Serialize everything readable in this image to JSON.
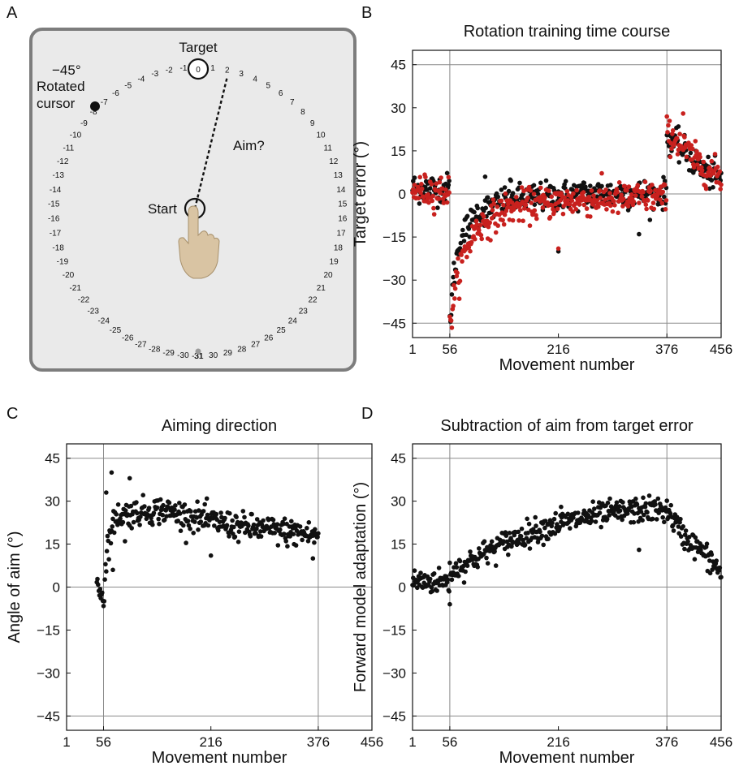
{
  "panel_letters": {
    "a": "A",
    "b": "B",
    "c": "C",
    "d": "D"
  },
  "diagram": {
    "target_label": "Target",
    "target_value": "0",
    "rotation_label": "−45°",
    "rotated_cursor_label": [
      "Rotated",
      "cursor"
    ],
    "aim_label": "Aim?",
    "start_label": "Start",
    "dial_right": [
      "1",
      "2",
      "3",
      "4",
      "5",
      "6",
      "7",
      "8",
      "9",
      "10",
      "11",
      "12",
      "13",
      "14",
      "15",
      "16",
      "17",
      "18",
      "19",
      "20",
      "21",
      "22",
      "23",
      "24",
      "25",
      "26",
      "27",
      "28",
      "29",
      "30",
      "31"
    ],
    "dial_left": [
      "-1",
      "-2",
      "-3",
      "-4",
      "-5",
      "-6",
      "-7",
      "-8",
      "-9",
      "-10",
      "-11",
      "-12",
      "-13",
      "-14",
      "-15",
      "-16",
      "-17",
      "-18",
      "-19",
      "-20",
      "-21",
      "-22",
      "-23",
      "-24",
      "-25",
      "-26",
      "-27",
      "-28",
      "-29",
      "-30",
      "-31"
    ],
    "colors": {
      "panel_bg": "#eaeaea",
      "panel_border": "#7d7d7d",
      "hand": "#d9c4a3",
      "bottom_dot": "#9a9a9a"
    }
  },
  "chart_data": [
    {
      "id": "B",
      "type": "scatter",
      "title": "Rotation training time course",
      "xlabel": "Movement number",
      "ylabel": "Target error (°)",
      "xlim": [
        1,
        456
      ],
      "ylim": [
        -50,
        50
      ],
      "xticks": [
        1,
        56,
        216,
        376,
        456
      ],
      "yticks": [
        45,
        30,
        15,
        0,
        -15,
        -30,
        -45
      ],
      "hlines": [
        45,
        0,
        -45
      ],
      "vlines": [
        56,
        376
      ],
      "series": [
        {
          "color": "#111111",
          "trend": [
            [
              1,
              2
            ],
            [
              55,
              2
            ],
            [
              56,
              -44
            ],
            [
              62,
              -28
            ],
            [
              72,
              -15
            ],
            [
              95,
              -7
            ],
            [
              140,
              -2
            ],
            [
              200,
              -1
            ],
            [
              250,
              0
            ],
            [
              300,
              0
            ],
            [
              350,
              0
            ],
            [
              375,
              0
            ],
            [
              376,
              20
            ],
            [
              390,
              17
            ],
            [
              405,
              14
            ],
            [
              420,
              10
            ],
            [
              440,
              7
            ],
            [
              456,
              5
            ]
          ],
          "noise": 2.6,
          "outliers": [
            [
              108,
              6
            ],
            [
              145,
              5
            ],
            [
              216,
              -20
            ],
            [
              335,
              -14
            ]
          ]
        },
        {
          "color": "#c8211e",
          "trend": [
            [
              1,
              1
            ],
            [
              55,
              1
            ],
            [
              56,
              -47
            ],
            [
              62,
              -35
            ],
            [
              75,
              -22
            ],
            [
              95,
              -12
            ],
            [
              140,
              -5
            ],
            [
              200,
              -3
            ],
            [
              250,
              -2
            ],
            [
              300,
              -2
            ],
            [
              350,
              -1
            ],
            [
              375,
              -1
            ],
            [
              376,
              21
            ],
            [
              390,
              19
            ],
            [
              405,
              15
            ],
            [
              420,
              11
            ],
            [
              440,
              8
            ],
            [
              456,
              6
            ]
          ],
          "noise": 2.8,
          "outliers": [
            [
              216,
              -19
            ],
            [
              400,
              28
            ]
          ]
        }
      ]
    },
    {
      "id": "C",
      "type": "scatter",
      "title": "Aiming direction",
      "xlabel": "Movement number",
      "ylabel": "Angle of aim (°)",
      "xlim": [
        1,
        456
      ],
      "ylim": [
        -50,
        50
      ],
      "xticks": [
        1,
        56,
        216,
        376,
        456
      ],
      "yticks": [
        45,
        30,
        15,
        0,
        -15,
        -30,
        -45
      ],
      "hlines": [
        45,
        0,
        -45
      ],
      "vlines": [
        56,
        376
      ],
      "series": [
        {
          "color": "#111111",
          "range": [
            46,
            376
          ],
          "trend": [
            [
              46,
              2
            ],
            [
              56,
              -4
            ],
            [
              62,
              15
            ],
            [
              75,
              25
            ],
            [
              100,
              26
            ],
            [
              140,
              27
            ],
            [
              180,
              25
            ],
            [
              216,
              23
            ],
            [
              260,
              21
            ],
            [
              300,
              20
            ],
            [
              340,
              19
            ],
            [
              376,
              18
            ]
          ],
          "noise": 2.4,
          "outliers": [
            [
              68,
              40
            ],
            [
              60,
              33
            ],
            [
              95,
              38
            ],
            [
              88,
              16
            ],
            [
              70,
              6
            ],
            [
              216,
              11
            ],
            [
              368,
              10
            ]
          ]
        }
      ]
    },
    {
      "id": "D",
      "type": "scatter",
      "title": "Subtraction of aim from target error",
      "xlabel": "Movement number",
      "ylabel": "Forward model adaptation (°)",
      "xlim": [
        1,
        456
      ],
      "ylim": [
        -50,
        50
      ],
      "xticks": [
        1,
        56,
        216,
        376,
        456
      ],
      "yticks": [
        45,
        30,
        15,
        0,
        -15,
        -30,
        -45
      ],
      "hlines": [
        45,
        0,
        -45
      ],
      "vlines": [
        56,
        376
      ],
      "series": [
        {
          "color": "#111111",
          "trend": [
            [
              1,
              2
            ],
            [
              55,
              2
            ],
            [
              56,
              5
            ],
            [
              100,
              11
            ],
            [
              150,
              17
            ],
            [
              200,
              21
            ],
            [
              250,
              24
            ],
            [
              300,
              26
            ],
            [
              340,
              27
            ],
            [
              376,
              27
            ],
            [
              400,
              18
            ],
            [
              430,
              12
            ],
            [
              456,
              5
            ]
          ],
          "noise": 2.2,
          "outliers": [
            [
              56,
              -6
            ],
            [
              335,
              13
            ],
            [
              220,
              28
            ]
          ]
        }
      ]
    }
  ]
}
